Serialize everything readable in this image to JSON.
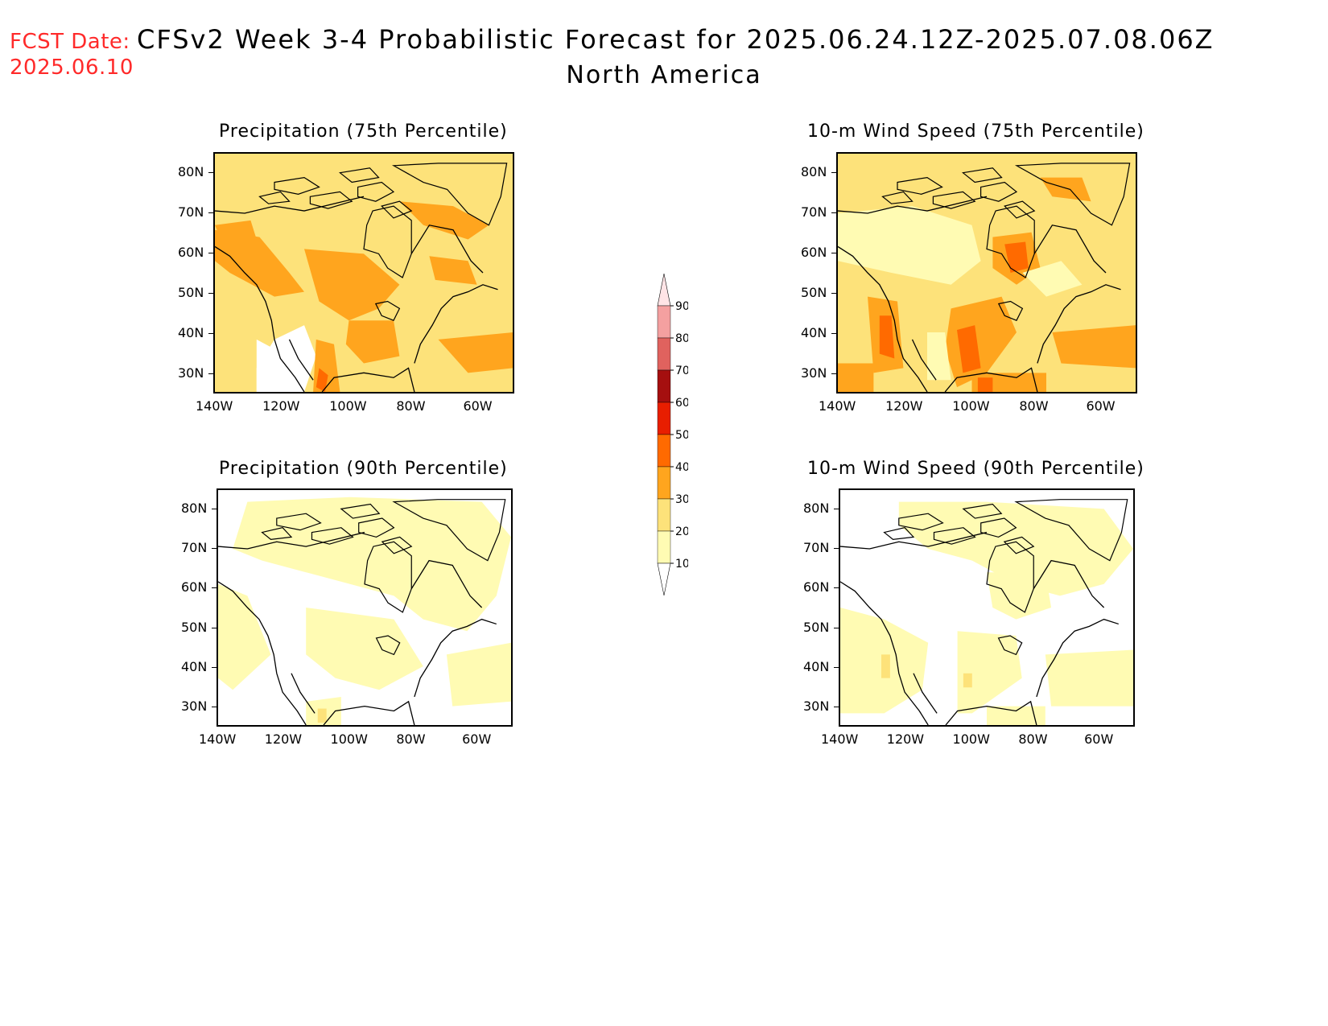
{
  "header": {
    "fcst_label": "FCST Date:",
    "fcst_date": "2025.06.10",
    "title": "CFSv2 Week 3-4 Probabilistic Forecast for 2025.06.24.12Z-2025.07.08.06Z",
    "region": "North America"
  },
  "panels": [
    {
      "title": "Precipitation (75th Percentile)",
      "variable": "precipitation",
      "percentile": 75
    },
    {
      "title": "10-m Wind Speed (75th Percentile)",
      "variable": "wind",
      "percentile": 75
    },
    {
      "title": "Precipitation (90th Percentile)",
      "variable": "precipitation",
      "percentile": 90
    },
    {
      "title": "10-m Wind Speed (90th Percentile)",
      "variable": "wind",
      "percentile": 90
    }
  ],
  "axes": {
    "lat_labels": [
      "80N",
      "70N",
      "60N",
      "50N",
      "40N",
      "30N"
    ],
    "lon_labels": [
      "140W",
      "120W",
      "100W",
      "80W",
      "60W"
    ],
    "lat_range": [
      25,
      85
    ],
    "lon_range": [
      -140,
      -50
    ]
  },
  "colorbar": {
    "levels": [
      "10",
      "20",
      "30",
      "40",
      "50",
      "60",
      "70",
      "80",
      "90"
    ],
    "colors": [
      "#fffbb3",
      "#fde27a",
      "#ffa51e",
      "#ff6a00",
      "#e81e00",
      "#a50f0f",
      "#e0625e",
      "#f4a0a0",
      "#ffe4e6"
    ]
  }
}
